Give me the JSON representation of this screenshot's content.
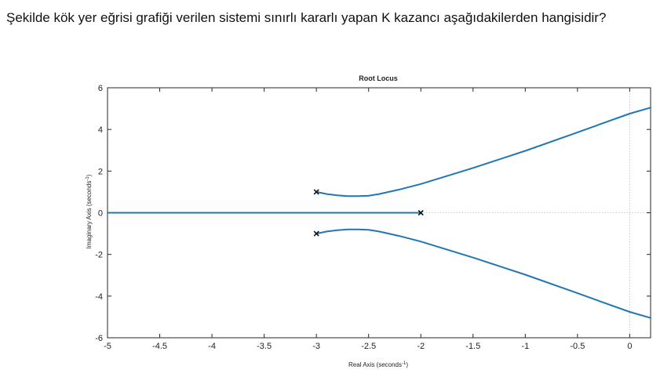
{
  "question": {
    "text": "Şekilde kök yer eğrisi grafiği verilen sistemi sınırlı kararlı yapan K kazancı aşağıdakilerden hangisidir?"
  },
  "chart_data": {
    "type": "line",
    "title": "Root Locus",
    "xlabel": "Real Axis (seconds",
    "ylabel": "Imaginary Axis (seconds",
    "unit_exponent": "-1",
    "xlim": [
      -5,
      0.2
    ],
    "ylim": [
      -6,
      6
    ],
    "xticks": [
      -5,
      -4.5,
      -4,
      -3.5,
      -3,
      -2.5,
      -2,
      -1.5,
      -1,
      -0.5,
      0
    ],
    "xtick_labels": [
      "-5",
      "-4.5",
      "-4",
      "-3.5",
      "-3",
      "-2.5",
      "-2",
      "-1.5",
      "-1",
      "-0.5",
      "0"
    ],
    "yticks": [
      -6,
      -4,
      -2,
      0,
      2,
      4,
      6
    ],
    "ytick_labels": [
      "-6",
      "-4",
      "-2",
      "0",
      "2",
      "4",
      "6"
    ],
    "grid": false,
    "color": "#1f77b4",
    "poles": [
      {
        "x": -3,
        "y": 1
      },
      {
        "x": -3,
        "y": -1
      },
      {
        "x": -2,
        "y": 0
      }
    ],
    "series": [
      {
        "x": [
          -2,
          -2.25,
          -2.5,
          -2.75,
          -3,
          -3.5,
          -4,
          -4.5,
          -5
        ],
        "y": [
          0,
          0,
          0,
          0,
          0,
          0,
          0,
          0,
          0
        ]
      },
      {
        "x": [
          -3,
          -2.9,
          -2.8,
          -2.7,
          -2.6,
          -2.5,
          -2.4,
          -2.2,
          -2.0,
          -1.5,
          -1.0,
          -0.5,
          0,
          0.2
        ],
        "y": [
          1,
          0.9,
          0.84,
          0.8,
          0.8,
          0.82,
          0.9,
          1.12,
          1.38,
          2.15,
          2.97,
          3.86,
          4.76,
          5.05
        ]
      },
      {
        "x": [
          -3,
          -2.9,
          -2.8,
          -2.7,
          -2.6,
          -2.5,
          -2.4,
          -2.2,
          -2.0,
          -1.5,
          -1.0,
          -0.5,
          0,
          0.2
        ],
        "y": [
          -1,
          -0.9,
          -0.84,
          -0.8,
          -0.8,
          -0.82,
          -0.9,
          -1.12,
          -1.38,
          -2.15,
          -2.97,
          -3.86,
          -4.76,
          -5.05
        ]
      }
    ]
  }
}
